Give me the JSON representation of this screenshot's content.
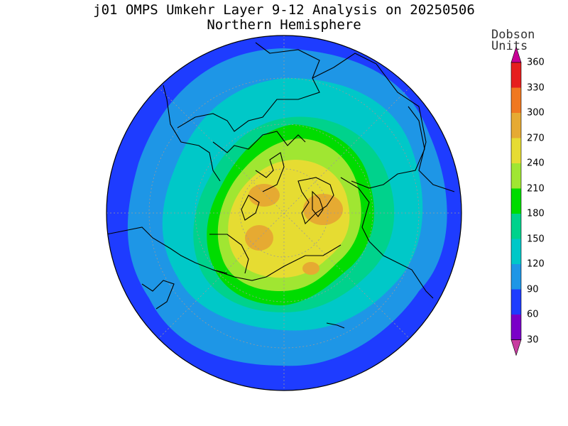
{
  "title": "j01 OMPS Umkehr Layer 9-12 Analysis on 20250506",
  "subtitle": "Northern Hemisphere",
  "colorbar": {
    "unit_line1": "Dobson",
    "unit_line2": "Units",
    "ticks": [
      "30",
      "60",
      "90",
      "120",
      "150",
      "180",
      "210",
      "240",
      "270",
      "300",
      "330",
      "360"
    ],
    "bins": [
      {
        "range": "<30",
        "color": "#c83ca0"
      },
      {
        "range": "30-60",
        "color": "#7a00c8"
      },
      {
        "range": "60-90",
        "color": "#1e3cff"
      },
      {
        "range": "90-120",
        "color": "#1e96e6"
      },
      {
        "range": "120-150",
        "color": "#00c8c8"
      },
      {
        "range": "150-180",
        "color": "#00d28c"
      },
      {
        "range": "180-210",
        "color": "#00dc00"
      },
      {
        "range": "210-240",
        "color": "#a0e632"
      },
      {
        "range": "240-270",
        "color": "#e6dc32"
      },
      {
        "range": "270-300",
        "color": "#e6aa32"
      },
      {
        "range": "300-330",
        "color": "#f07820"
      },
      {
        "range": "330-360",
        "color": "#e61e1e"
      },
      {
        "range": ">360",
        "color": "#c80096"
      }
    ]
  },
  "map": {
    "projection": "north-polar-stereographic",
    "field": "ozone layer 9-12 column (DU)",
    "general_pattern": "maximum 240-300 DU over the Arctic, decreasing outward to 60-90 DU at low latitudes"
  }
}
